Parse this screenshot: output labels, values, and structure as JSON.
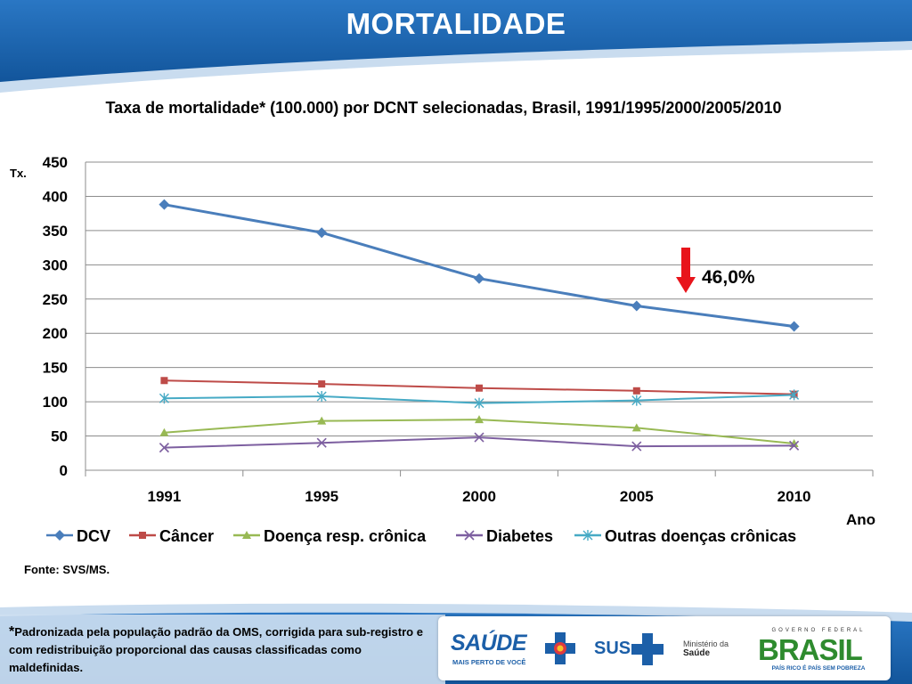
{
  "slide": {
    "title": "MORTALIDADE"
  },
  "chart_data": {
    "type": "line",
    "title": "Taxa de mortalidade* (100.000) por DCNT selecionadas, Brasil, 1991/1995/2000/2005/2010",
    "ylabel": "Tx.",
    "xlabel": "Ano",
    "categories": [
      "1991",
      "1995",
      "2000",
      "2005",
      "2010"
    ],
    "ylim": [
      0,
      450
    ],
    "yticks": [
      "0",
      "50",
      "100",
      "150",
      "200",
      "250",
      "300",
      "350",
      "400",
      "450"
    ],
    "grid": true,
    "legend_position": "bottom",
    "series": [
      {
        "name": "DCV",
        "values": [
          388,
          347,
          280,
          240,
          210
        ],
        "color": "#4a7ebb",
        "marker": "diamond"
      },
      {
        "name": "Câncer",
        "values": [
          131,
          126,
          120,
          116,
          111
        ],
        "color": "#be4b48",
        "marker": "square"
      },
      {
        "name": "Doença resp. crônica",
        "values": [
          55,
          72,
          74,
          62,
          39
        ],
        "color": "#98b954",
        "marker": "triangle"
      },
      {
        "name": "Diabetes",
        "values": [
          33,
          40,
          48,
          35,
          36
        ],
        "color": "#7d5fa0",
        "marker": "x"
      },
      {
        "name": "Outras doenças crônicas",
        "values": [
          105,
          108,
          98,
          102,
          110
        ],
        "color": "#46aac5",
        "marker": "star"
      }
    ],
    "annotation": {
      "text": "46,0%",
      "arrow": "down",
      "color": "#e8141b"
    }
  },
  "source": "Fonte: SVS/MS.",
  "footnote": {
    "star": "*",
    "text": "Padronizada pela população padrão da OMS, corrigida para sub-registro e com redistribuição proporcional das causas classificadas como maldefinidas."
  },
  "logos": {
    "saude": "SAÚDE",
    "saude_tagline": "MAIS PERTO DE VOCÊ",
    "sus": "SUS",
    "ministerio_line1": "Ministério da",
    "ministerio_line2": "Saúde",
    "brasil_top": "GOVERNO FEDERAL",
    "brasil": "BRASIL",
    "brasil_tagline": "PAÍS RICO É PAÍS SEM POBREZA"
  },
  "colors": {
    "header_blue": "#1a5fa8",
    "header_light": "#aac8e6"
  }
}
